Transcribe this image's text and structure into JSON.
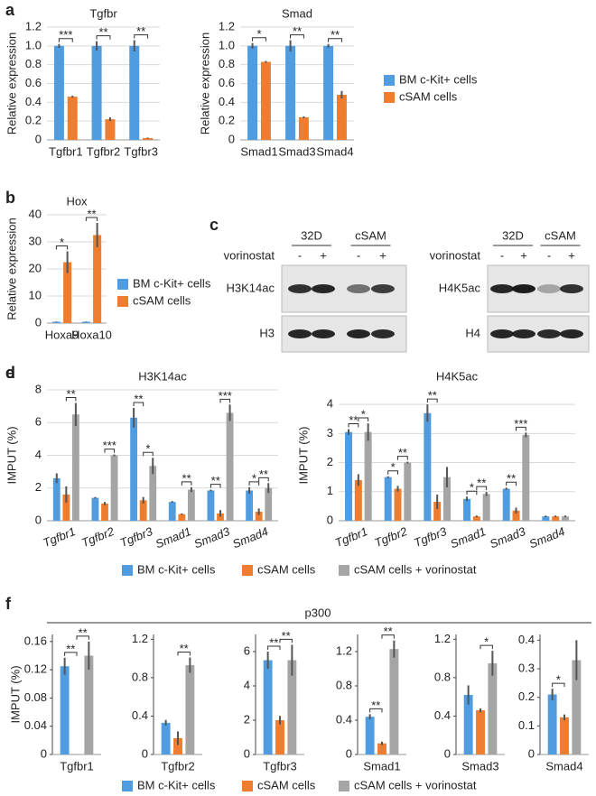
{
  "chart_data": [
    {
      "type": "bar",
      "panel": "a",
      "title": "Tgfbr",
      "ylabel": "Relative expression",
      "grid": true,
      "categories": [
        "Tgfbr1",
        "Tgfbr2",
        "Tgfbr3"
      ],
      "ylim": [
        0,
        1.2
      ],
      "yticks": [
        0,
        0.2,
        0.4,
        0.6,
        0.8,
        {
          "value": 1,
          "label": "1.0"
        },
        1.2
      ],
      "series": [
        {
          "name": "BM c-Kit+ cells",
          "color": "#4f9de0",
          "values": [
            1.0,
            1.0,
            1.0
          ],
          "errors": [
            0.02,
            0.05,
            0.06
          ]
        },
        {
          "name": "cSAM cells",
          "color": "#ee7d2f",
          "values": [
            0.46,
            0.22,
            0.02
          ],
          "errors": [
            0.01,
            0.02,
            0.005
          ]
        }
      ],
      "annotations": [
        {
          "text": "***",
          "category": "Tgfbr1",
          "between": [
            "BM c-Kit+ cells",
            "cSAM cells"
          ]
        },
        {
          "text": "**",
          "category": "Tgfbr2",
          "between": [
            "BM c-Kit+ cells",
            "cSAM cells"
          ]
        },
        {
          "text": "**",
          "category": "Tgfbr3",
          "between": [
            "BM c-Kit+ cells",
            "cSAM cells"
          ]
        }
      ]
    },
    {
      "type": "bar",
      "title": "Smad",
      "ylabel": "Relative expression",
      "grid": true,
      "categories": [
        "Smad1",
        "Smad3",
        "Smad4"
      ],
      "ylim": [
        0,
        1.2
      ],
      "yticks": [
        0,
        0.2,
        0.4,
        0.6,
        0.8,
        {
          "value": 1,
          "label": "1.0"
        },
        1.2
      ],
      "series": [
        {
          "name": "BM c-Kit+ cells",
          "color": "#4f9de0",
          "values": [
            1.0,
            1.0,
            1.0
          ],
          "errors": [
            0.03,
            0.06,
            0.02
          ]
        },
        {
          "name": "cSAM cells",
          "color": "#ee7d2f",
          "values": [
            0.83,
            0.24,
            0.48
          ],
          "errors": [
            0.01,
            0.01,
            0.04
          ]
        }
      ],
      "annotations": [
        {
          "text": "*",
          "category": "Smad1",
          "between": [
            "BM c-Kit+ cells",
            "cSAM cells"
          ]
        },
        {
          "text": "**",
          "category": "Smad3",
          "between": [
            "BM c-Kit+ cells",
            "cSAM cells"
          ]
        },
        {
          "text": "**",
          "category": "Smad4",
          "between": [
            "BM c-Kit+ cells",
            "cSAM cells"
          ]
        }
      ]
    },
    {
      "type": "bar",
      "panel": "b",
      "title": "Hox",
      "ylabel": "Relative expression",
      "grid": true,
      "categories": [
        "Hoxa9",
        "Hoxa10"
      ],
      "ylim": [
        0,
        40
      ],
      "yticks": [
        0,
        10,
        20,
        30,
        40
      ],
      "series": [
        {
          "name": "BM c-Kit+ cells",
          "color": "#4f9de0",
          "values": [
            0.5,
            0.5
          ],
          "errors": [
            0.1,
            0.1
          ]
        },
        {
          "name": "cSAM cells",
          "color": "#ee7d2f",
          "values": [
            22.5,
            32.5
          ],
          "errors": [
            4,
            4.5
          ]
        }
      ],
      "annotations": [
        {
          "text": "*",
          "category": "Hoxa9",
          "between": [
            "BM c-Kit+ cells",
            "cSAM cells"
          ]
        },
        {
          "text": "**",
          "category": "Hoxa10",
          "between": [
            "BM c-Kit+ cells",
            "cSAM cells"
          ]
        }
      ]
    },
    {
      "type": "bar",
      "panel": "d",
      "title": "H3K14ac",
      "ylabel": "IMPUT (%)",
      "grid": true,
      "categories": [
        "Tgfbr1",
        "Tgfbr2",
        "Tgfbr3",
        "Smad1",
        "Smad3",
        "Smad4"
      ],
      "ylim": [
        0,
        8
      ],
      "yticks": [
        0,
        2,
        4,
        6,
        8
      ],
      "series": [
        {
          "name": "BM c-Kit+ cells",
          "color": "#4f9de0",
          "values": [
            2.6,
            1.4,
            6.3,
            1.15,
            1.85,
            1.85
          ],
          "errors": [
            0.3,
            0.05,
            0.6,
            0.05,
            0.05,
            0.2
          ]
        },
        {
          "name": "cSAM cells",
          "color": "#ee7d2f",
          "values": [
            1.6,
            1.05,
            1.25,
            0.4,
            0.45,
            0.55
          ],
          "errors": [
            0.5,
            0.1,
            0.2,
            0.05,
            0.2,
            0.2
          ]
        },
        {
          "name": "cSAM cells + vorinostat",
          "color": "#a5a5a5",
          "values": [
            6.5,
            4.0,
            3.35,
            1.9,
            6.6,
            2.0
          ],
          "errors": [
            0.7,
            0.05,
            0.5,
            0.15,
            0.5,
            0.3
          ]
        }
      ],
      "annotations": [
        {
          "text": "**",
          "category": "Tgfbr1",
          "between": [
            "cSAM cells",
            "cSAM cells + vorinostat"
          ]
        },
        {
          "text": "***",
          "category": "Tgfbr2",
          "between": [
            "cSAM cells",
            "cSAM cells + vorinostat"
          ]
        },
        {
          "text": "**",
          "category": "Tgfbr3",
          "between": [
            "BM c-Kit+ cells",
            "cSAM cells"
          ]
        },
        {
          "text": "*",
          "category": "Tgfbr3",
          "between": [
            "cSAM cells",
            "cSAM cells + vorinostat"
          ]
        },
        {
          "text": "**",
          "category": "Smad1",
          "between": [
            "cSAM cells",
            "cSAM cells + vorinostat"
          ]
        },
        {
          "text": "**",
          "category": "Smad3",
          "between": [
            "BM c-Kit+ cells",
            "cSAM cells"
          ]
        },
        {
          "text": "***",
          "category": "Smad3",
          "between": [
            "cSAM cells",
            "cSAM cells + vorinostat"
          ]
        },
        {
          "text": "*",
          "category": "Smad4",
          "between": [
            "BM c-Kit+ cells",
            "cSAM cells"
          ]
        },
        {
          "text": "**",
          "category": "Smad4",
          "between": [
            "cSAM cells",
            "cSAM cells + vorinostat"
          ]
        }
      ]
    },
    {
      "type": "bar",
      "panel": "e",
      "title": "H4K5ac",
      "ylabel": "IMPUT (%)",
      "grid": true,
      "categories": [
        "Tgfbr1",
        "Tgfbr2",
        "Tgfbr3",
        "Smad1",
        "Smad3",
        "Smad4"
      ],
      "ylim": [
        0,
        4.5
      ],
      "yticks": [
        0,
        1,
        2,
        3,
        4
      ],
      "series": [
        {
          "name": "BM c-Kit+ cells",
          "color": "#4f9de0",
          "values": [
            3.05,
            1.5,
            3.7,
            0.75,
            1.1,
            0.15
          ],
          "errors": [
            0.1,
            0.03,
            0.3,
            0.08,
            0.04,
            0.03
          ]
        },
        {
          "name": "cSAM cells",
          "color": "#ee7d2f",
          "values": [
            1.4,
            1.1,
            0.65,
            0.15,
            0.35,
            0.15
          ],
          "errors": [
            0.2,
            0.1,
            0.25,
            0.03,
            0.1,
            0.03
          ]
        },
        {
          "name": "cSAM cells + vorinostat",
          "color": "#a5a5a5",
          "values": [
            3.05,
            2.0,
            1.5,
            0.92,
            2.95,
            0.15
          ],
          "errors": [
            0.3,
            0.03,
            0.35,
            0.07,
            0.08,
            0.03
          ]
        }
      ],
      "annotations": [
        {
          "text": "**",
          "category": "Tgfbr1",
          "between": [
            "BM c-Kit+ cells",
            "cSAM cells"
          ]
        },
        {
          "text": "*",
          "category": "Tgfbr1",
          "between": [
            "cSAM cells",
            "cSAM cells + vorinostat"
          ]
        },
        {
          "text": "*",
          "category": "Tgfbr2",
          "between": [
            "BM c-Kit+ cells",
            "cSAM cells"
          ]
        },
        {
          "text": "**",
          "category": "Tgfbr2",
          "between": [
            "cSAM cells",
            "cSAM cells + vorinostat"
          ]
        },
        {
          "text": "**",
          "category": "Tgfbr3",
          "between": [
            "BM c-Kit+ cells",
            "cSAM cells"
          ]
        },
        {
          "text": "*",
          "category": "Smad1",
          "between": [
            "BM c-Kit+ cells",
            "cSAM cells"
          ]
        },
        {
          "text": "**",
          "category": "Smad1",
          "between": [
            "cSAM cells",
            "cSAM cells + vorinostat"
          ]
        },
        {
          "text": "**",
          "category": "Smad3",
          "between": [
            "BM c-Kit+ cells",
            "cSAM cells"
          ]
        },
        {
          "text": "***",
          "category": "Smad3",
          "between": [
            "cSAM cells",
            "cSAM cells + vorinostat"
          ]
        }
      ]
    },
    {
      "type": "bar",
      "ylabel": "IMPUT (%)",
      "grid": false,
      "categories": [
        "Tgfbr1"
      ],
      "ylim": [
        0,
        0.17
      ],
      "yticks": [
        0,
        0.04,
        0.08,
        0.12,
        0.16
      ],
      "series": [
        {
          "name": "BM c-Kit+ cells",
          "color": "#4f9de0",
          "values": [
            0.125
          ],
          "errors": [
            0.012
          ]
        },
        {
          "name": "cSAM cells",
          "color": "#ee7d2f",
          "values": [
            0
          ],
          "errors": [
            0
          ]
        },
        {
          "name": "cSAM cells + vorinostat",
          "color": "#a5a5a5",
          "values": [
            0.14
          ],
          "errors": [
            0.02
          ]
        }
      ],
      "annotations": [
        {
          "text": "**",
          "category": "Tgfbr1",
          "between": [
            "BM c-Kit+ cells",
            "cSAM cells"
          ]
        },
        {
          "text": "**",
          "category": "Tgfbr1",
          "between": [
            "cSAM cells",
            "cSAM cells + vorinostat"
          ]
        }
      ]
    },
    {
      "type": "bar",
      "grid": false,
      "categories": [
        "Tgfbr2"
      ],
      "ylim": [
        0,
        1.25
      ],
      "yticks": [
        0,
        0.4,
        0.8,
        1.2
      ],
      "series": [
        {
          "name": "BM c-Kit+ cells",
          "color": "#4f9de0",
          "values": [
            0.33
          ],
          "errors": [
            0.03
          ]
        },
        {
          "name": "cSAM cells",
          "color": "#ee7d2f",
          "values": [
            0.17
          ],
          "errors": [
            0.07
          ]
        },
        {
          "name": "cSAM cells + vorinostat",
          "color": "#a5a5a5",
          "values": [
            0.93
          ],
          "errors": [
            0.08
          ]
        }
      ],
      "annotations": [
        {
          "text": "**",
          "category": "Tgfbr2",
          "between": [
            "cSAM cells",
            "cSAM cells + vorinostat"
          ]
        }
      ]
    },
    {
      "type": "bar",
      "grid": false,
      "categories": [
        "Tgfbr3"
      ],
      "ylim": [
        0,
        7
      ],
      "yticks": [
        0,
        2,
        4,
        6
      ],
      "series": [
        {
          "name": "BM c-Kit+ cells",
          "color": "#4f9de0",
          "values": [
            5.5
          ],
          "errors": [
            0.5
          ]
        },
        {
          "name": "cSAM cells",
          "color": "#ee7d2f",
          "values": [
            2.0
          ],
          "errors": [
            0.25
          ]
        },
        {
          "name": "cSAM cells + vorinostat",
          "color": "#a5a5a5",
          "values": [
            5.5
          ],
          "errors": [
            0.9
          ]
        }
      ],
      "annotations": [
        {
          "text": "**",
          "category": "Tgfbr3",
          "between": [
            "BM c-Kit+ cells",
            "cSAM cells"
          ]
        },
        {
          "text": "**",
          "category": "Tgfbr3",
          "between": [
            "cSAM cells",
            "cSAM cells + vorinostat"
          ]
        }
      ]
    },
    {
      "type": "bar",
      "grid": false,
      "categories": [
        "Smad1"
      ],
      "ylim": [
        0,
        1.4
      ],
      "yticks": [
        0,
        0.4,
        0.8,
        1.2
      ],
      "series": [
        {
          "name": "BM c-Kit+ cells",
          "color": "#4f9de0",
          "values": [
            0.44
          ],
          "errors": [
            0.03
          ]
        },
        {
          "name": "cSAM cells",
          "color": "#ee7d2f",
          "values": [
            0.13
          ],
          "errors": [
            0.02
          ]
        },
        {
          "name": "cSAM cells + vorinostat",
          "color": "#a5a5a5",
          "values": [
            1.23
          ],
          "errors": [
            0.1
          ]
        }
      ],
      "annotations": [
        {
          "text": "**",
          "category": "Smad1",
          "between": [
            "BM c-Kit+ cells",
            "cSAM cells"
          ]
        },
        {
          "text": "**",
          "category": "Smad1",
          "between": [
            "cSAM cells",
            "cSAM cells + vorinostat"
          ]
        }
      ]
    },
    {
      "type": "bar",
      "grid": false,
      "categories": [
        "Smad3"
      ],
      "ylim": [
        0,
        1.25
      ],
      "yticks": [
        0,
        0.4,
        0.8,
        1.2
      ],
      "series": [
        {
          "name": "BM c-Kit+ cells",
          "color": "#4f9de0",
          "values": [
            0.62
          ],
          "errors": [
            0.1
          ]
        },
        {
          "name": "cSAM cells",
          "color": "#ee7d2f",
          "values": [
            0.46
          ],
          "errors": [
            0.02
          ]
        },
        {
          "name": "cSAM cells + vorinostat",
          "color": "#a5a5a5",
          "values": [
            0.95
          ],
          "errors": [
            0.13
          ]
        }
      ],
      "annotations": [
        {
          "text": "*",
          "category": "Smad3",
          "between": [
            "cSAM cells",
            "cSAM cells + vorinostat"
          ]
        }
      ]
    },
    {
      "type": "bar",
      "grid": false,
      "categories": [
        "Smad4"
      ],
      "ylim": [
        0,
        0.42
      ],
      "yticks": [
        0,
        0.1,
        0.2,
        0.3,
        0.4
      ],
      "series": [
        {
          "name": "BM c-Kit+ cells",
          "color": "#4f9de0",
          "values": [
            0.21
          ],
          "errors": [
            0.02
          ]
        },
        {
          "name": "cSAM cells",
          "color": "#ee7d2f",
          "values": [
            0.13
          ],
          "errors": [
            0.01
          ]
        },
        {
          "name": "cSAM cells + vorinostat",
          "color": "#a5a5a5",
          "values": [
            0.33
          ],
          "errors": [
            0.07
          ]
        }
      ],
      "annotations": [
        {
          "text": "*",
          "category": "Smad4",
          "between": [
            "BM c-Kit+ cells",
            "cSAM cells"
          ]
        }
      ]
    }
  ],
  "panel_f": {
    "panel": "f",
    "title": "p300"
  },
  "blot": {
    "panel": "c",
    "treatment": "vorinostat",
    "blots": [
      {
        "groups": [
          "32D",
          "cSAM"
        ],
        "signs": [
          "-",
          "+",
          "-",
          "+"
        ],
        "rows": [
          "H3K14ac",
          "H3"
        ]
      },
      {
        "groups": [
          "32D",
          "cSAM"
        ],
        "signs": [
          "-",
          "+",
          "-",
          "+"
        ],
        "rows": [
          "H4K5ac",
          "H4"
        ]
      }
    ]
  }
}
